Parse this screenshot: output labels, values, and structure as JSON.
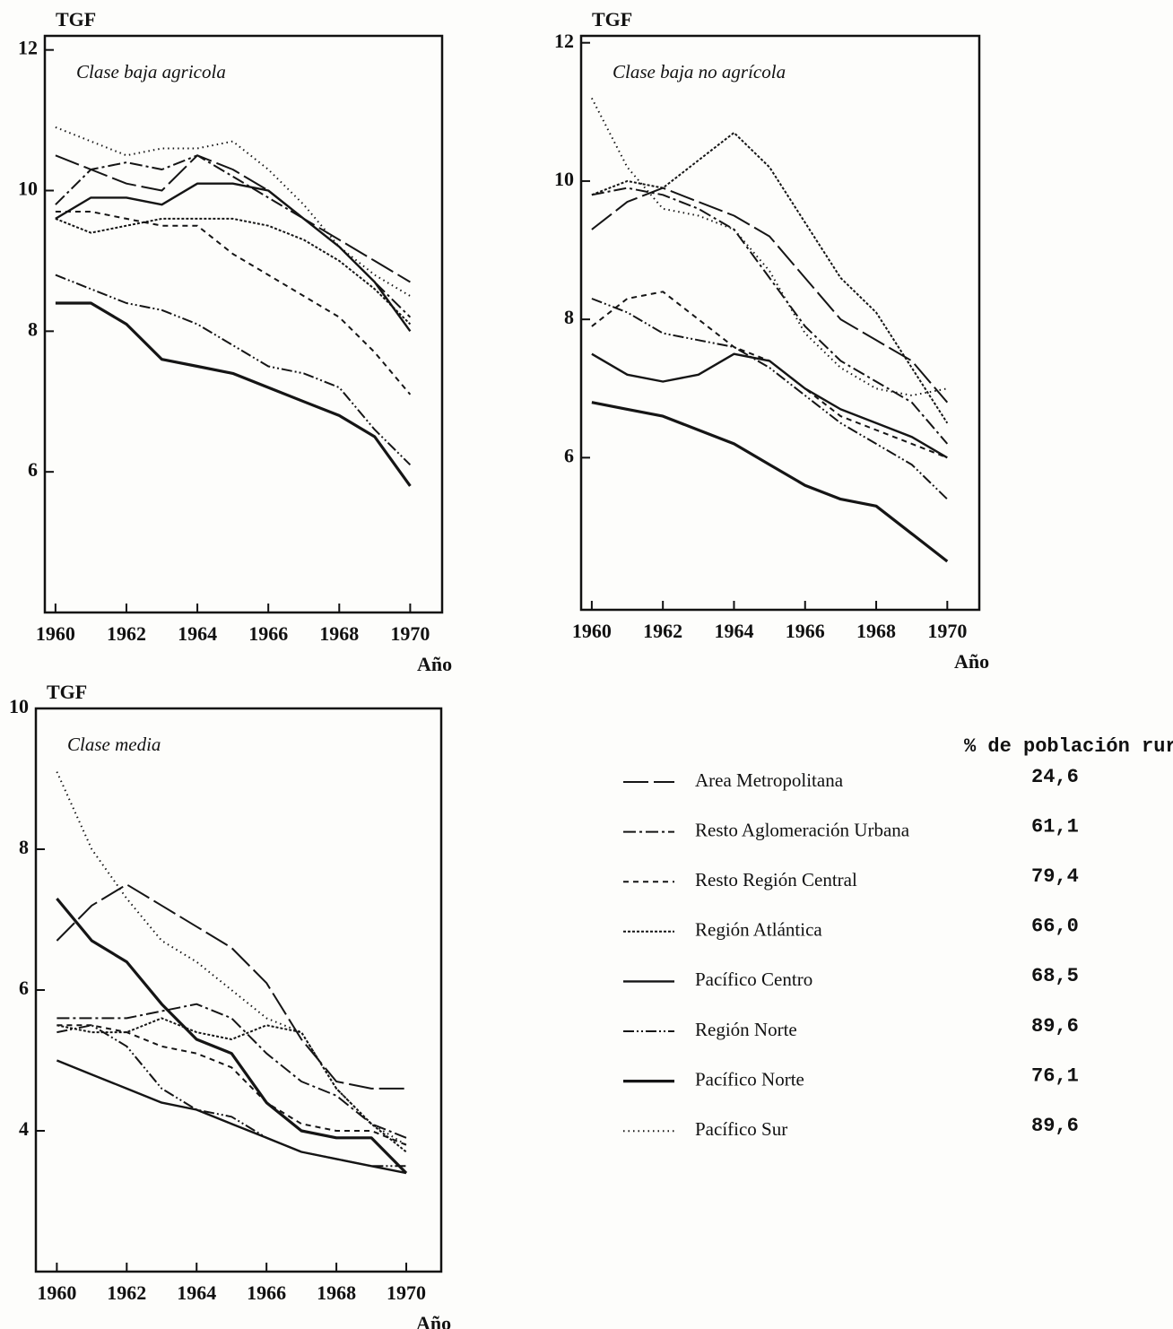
{
  "chart_data": [
    {
      "type": "line",
      "title": "Clase baja agricola",
      "ylabel": "TGF",
      "xlabel": "Año",
      "x": [
        1960,
        1961,
        1962,
        1963,
        1964,
        1965,
        1966,
        1967,
        1968,
        1969,
        1970
      ],
      "xlim": [
        1959.7,
        1970.9
      ],
      "xticks": [
        1960,
        1962,
        1964,
        1966,
        1968,
        1970
      ],
      "ylim": [
        4,
        12.2
      ],
      "yticks": [
        6,
        8,
        10,
        12
      ],
      "series": [
        {
          "name": "Area Metropolitana",
          "dash": "28,6",
          "values": [
            10.5,
            10.3,
            10.1,
            10.0,
            10.5,
            10.3,
            10.0,
            9.6,
            9.3,
            9.0,
            8.7
          ]
        },
        {
          "name": "Resto Aglomeración Urbana",
          "dash": "14,4,3,4",
          "values": [
            9.8,
            10.3,
            10.4,
            10.3,
            10.5,
            10.2,
            9.9,
            9.6,
            9.2,
            8.7,
            8.2
          ]
        },
        {
          "name": "Resto Región Central",
          "dash": "6,5",
          "values": [
            9.7,
            9.7,
            9.6,
            9.5,
            9.5,
            9.1,
            8.8,
            8.5,
            8.2,
            7.7,
            7.1
          ]
        },
        {
          "name": "Región Atlántica",
          "dash": "3,2",
          "values": [
            9.6,
            9.4,
            9.5,
            9.6,
            9.6,
            9.6,
            9.5,
            9.3,
            9.0,
            8.6,
            8.1
          ]
        },
        {
          "name": "Pacífico Centro",
          "dash": "none",
          "values": [
            9.6,
            9.9,
            9.9,
            9.8,
            10.1,
            10.1,
            10.0,
            9.6,
            9.2,
            8.7,
            8.0
          ]
        },
        {
          "name": "Región Norte",
          "dash": "12,3,2,3,2,3",
          "values": [
            8.8,
            8.6,
            8.4,
            8.3,
            8.1,
            7.8,
            7.5,
            7.4,
            7.2,
            6.6,
            6.1
          ]
        },
        {
          "name": "Pacífico Norte",
          "dash": "none",
          "values": [
            8.4,
            8.4,
            8.1,
            7.6,
            7.5,
            7.4,
            7.2,
            7.0,
            6.8,
            6.5,
            5.8
          ]
        },
        {
          "name": "Pacífico Sur",
          "dash": "1.5,4",
          "values": [
            10.9,
            10.7,
            10.5,
            10.6,
            10.6,
            10.7,
            10.3,
            9.8,
            9.2,
            8.8,
            8.5
          ]
        }
      ]
    },
    {
      "type": "line",
      "title": "Clase baja no agrícola",
      "ylabel": "TGF",
      "xlabel": "Año",
      "x": [
        1960,
        1961,
        1962,
        1963,
        1964,
        1965,
        1966,
        1967,
        1968,
        1969,
        1970
      ],
      "xlim": [
        1959.7,
        1970.9
      ],
      "xticks": [
        1960,
        1962,
        1964,
        1966,
        1968,
        1970
      ],
      "ylim": [
        3.8,
        12.1
      ],
      "yticks": [
        6,
        8,
        10,
        12
      ],
      "series": [
        {
          "dash": "28,6",
          "values": [
            9.3,
            9.7,
            9.9,
            9.7,
            9.5,
            9.2,
            8.6,
            8.0,
            7.7,
            7.4,
            6.8
          ]
        },
        {
          "dash": "14,4,3,4",
          "values": [
            9.8,
            9.9,
            9.8,
            9.6,
            9.3,
            8.6,
            7.9,
            7.4,
            7.1,
            6.8,
            6.2
          ]
        },
        {
          "dash": "6,5",
          "values": [
            7.9,
            8.3,
            8.4,
            8.0,
            7.6,
            7.4,
            7.0,
            6.6,
            6.4,
            6.2,
            6.0
          ]
        },
        {
          "dash": "3,2",
          "values": [
            9.8,
            10.0,
            9.9,
            10.3,
            10.7,
            10.2,
            9.4,
            8.6,
            8.1,
            7.3,
            6.5
          ]
        },
        {
          "dash": "none",
          "values": [
            7.5,
            7.2,
            7.1,
            7.2,
            7.5,
            7.4,
            7.0,
            6.7,
            6.5,
            6.3,
            6.0
          ]
        },
        {
          "dash": "12,3,2,3,2,3",
          "values": [
            8.3,
            8.1,
            7.8,
            7.7,
            7.6,
            7.3,
            6.9,
            6.5,
            6.2,
            5.9,
            5.4
          ]
        },
        {
          "dash": "none",
          "values": [
            6.8,
            6.7,
            6.6,
            6.4,
            6.2,
            5.9,
            5.6,
            5.4,
            5.3,
            4.9,
            4.5
          ]
        },
        {
          "dash": "1.5,4",
          "values": [
            11.2,
            10.2,
            9.6,
            9.5,
            9.3,
            8.7,
            7.8,
            7.3,
            7.0,
            6.9,
            7.0
          ]
        }
      ]
    },
    {
      "type": "line",
      "title": "Clase media",
      "ylabel": "TGF",
      "xlabel": "Año",
      "x": [
        1960,
        1961,
        1962,
        1963,
        1964,
        1965,
        1966,
        1967,
        1968,
        1969,
        1970
      ],
      "xlim": [
        1959.4,
        1971.0
      ],
      "xticks": [
        1960,
        1962,
        1964,
        1966,
        1968,
        1970
      ],
      "ylim": [
        2,
        10
      ],
      "yticks": [
        4,
        6,
        8,
        10
      ],
      "series": [
        {
          "dash": "28,6",
          "values": [
            6.7,
            7.2,
            7.5,
            7.2,
            6.9,
            6.6,
            6.1,
            5.3,
            4.7,
            4.6,
            4.6
          ]
        },
        {
          "dash": "14,4,3,4",
          "values": [
            5.6,
            5.6,
            5.6,
            5.7,
            5.8,
            5.6,
            5.1,
            4.7,
            4.5,
            4.1,
            3.9
          ]
        },
        {
          "dash": "6,5",
          "values": [
            5.5,
            5.5,
            5.4,
            5.2,
            5.1,
            4.9,
            4.4,
            4.1,
            4.0,
            4.0,
            3.8
          ]
        },
        {
          "dash": "3,2",
          "values": [
            5.5,
            5.4,
            5.4,
            5.6,
            5.4,
            5.3,
            5.5,
            5.4,
            4.6,
            4.1,
            3.7
          ]
        },
        {
          "dash": "none",
          "values": [
            5.0,
            4.8,
            4.6,
            4.4,
            4.3,
            4.1,
            3.9,
            3.7,
            3.6,
            3.5,
            3.4
          ]
        },
        {
          "dash": "12,3,2,3,2,3",
          "values": [
            5.4,
            5.5,
            5.2,
            4.6,
            4.3,
            4.2,
            3.9,
            3.7,
            3.6,
            3.5,
            3.5
          ]
        },
        {
          "dash": "none",
          "values": [
            7.3,
            6.7,
            6.4,
            5.8,
            5.3,
            5.1,
            4.4,
            4.0,
            3.9,
            3.9,
            3.4
          ]
        },
        {
          "dash": "1.5,4",
          "values": [
            9.1,
            8.0,
            7.3,
            6.7,
            6.4,
            6.0,
            5.6,
            5.4,
            4.6,
            4.1,
            3.8
          ]
        }
      ]
    }
  ],
  "legend": {
    "title": "% de población rural",
    "values": [
      24.6,
      61.1,
      79.4,
      66.0,
      68.5,
      89.6,
      76.1,
      89.6
    ],
    "value_labels": [
      "24,6",
      "61,1",
      "79,4",
      "66,0",
      "68,5",
      "89,6",
      "76,1",
      "89,6"
    ]
  }
}
